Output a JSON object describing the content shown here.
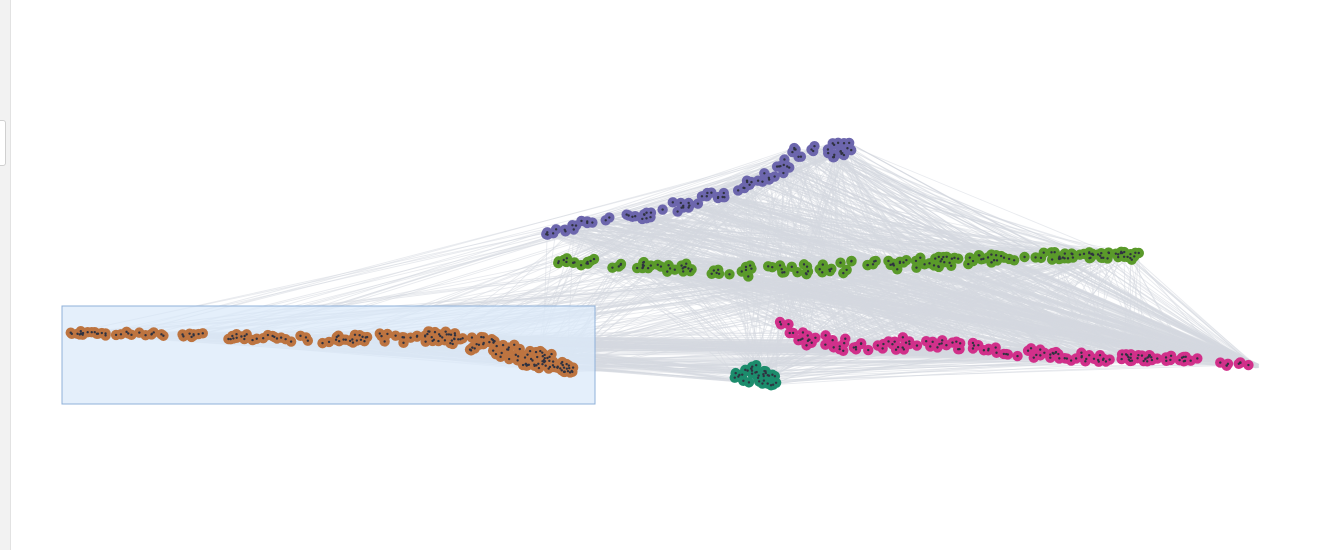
{
  "layout": {
    "type": "network-layer-view"
  },
  "colors": {
    "edge": "#d5d8e0",
    "node_dot": "#2f3240",
    "selection_fill": "#dbeaf9",
    "selection_stroke": "#8fb0d8"
  },
  "clusters": [
    {
      "id": "purple",
      "color": "#6c66ad"
    },
    {
      "id": "green",
      "color": "#5a9a2a"
    },
    {
      "id": "orange",
      "color": "#bd7440"
    },
    {
      "id": "magenta",
      "color": "#d1308a"
    },
    {
      "id": "teal",
      "color": "#1c8c6c"
    }
  ],
  "selection": {
    "cluster": "orange"
  }
}
